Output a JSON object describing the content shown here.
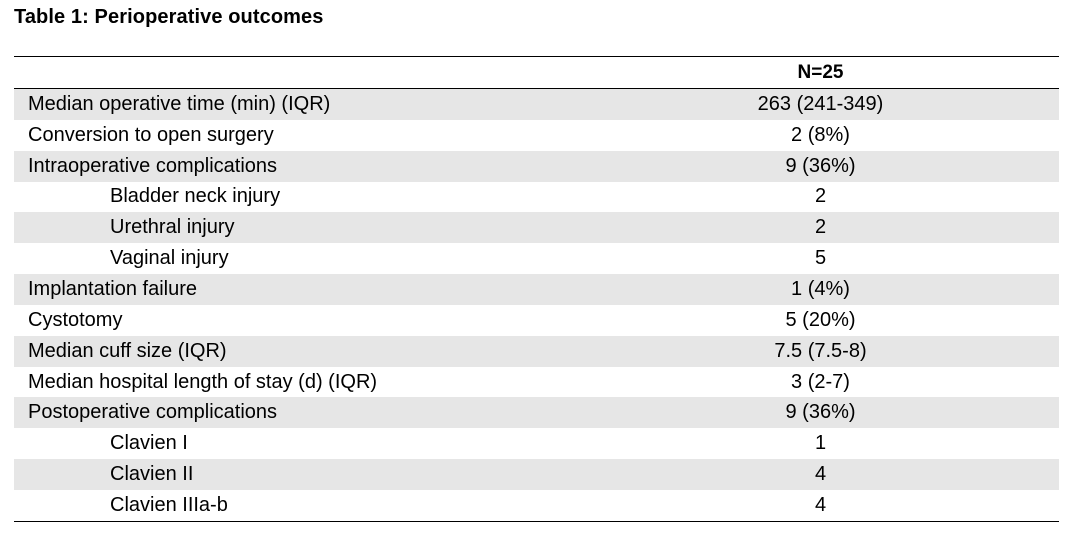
{
  "caption": "Table 1: Perioperative outcomes",
  "header": {
    "label": "",
    "value": "N=25"
  },
  "rows": [
    {
      "label": "Median operative time (min) (IQR)",
      "value": "263 (241-349)",
      "indent": false,
      "shaded": true
    },
    {
      "label": "Conversion to open surgery",
      "value": "2 (8%)",
      "indent": false,
      "shaded": false
    },
    {
      "label": "Intraoperative complications",
      "value": "9 (36%)",
      "indent": false,
      "shaded": true
    },
    {
      "label": "Bladder neck injury",
      "value": "2",
      "indent": true,
      "shaded": false
    },
    {
      "label": "Urethral injury",
      "value": "2",
      "indent": true,
      "shaded": true
    },
    {
      "label": "Vaginal injury",
      "value": "5",
      "indent": true,
      "shaded": false
    },
    {
      "label": "Implantation failure",
      "value": "1 (4%)",
      "indent": false,
      "shaded": true
    },
    {
      "label": "Cystotomy",
      "value": "5 (20%)",
      "indent": false,
      "shaded": false
    },
    {
      "label": "Median cuff size (IQR)",
      "value": "7.5 (7.5-8)",
      "indent": false,
      "shaded": true
    },
    {
      "label": "Median hospital length of stay (d) (IQR)",
      "value": "3 (2-7)",
      "indent": false,
      "shaded": false
    },
    {
      "label": "Postoperative complications",
      "value": "9 (36%)",
      "indent": false,
      "shaded": true
    },
    {
      "label": "Clavien I",
      "value": "1",
      "indent": true,
      "shaded": false
    },
    {
      "label": "Clavien II",
      "value": "4",
      "indent": true,
      "shaded": true
    },
    {
      "label": "Clavien IIIa-b",
      "value": "4",
      "indent": true,
      "shaded": false
    }
  ]
}
